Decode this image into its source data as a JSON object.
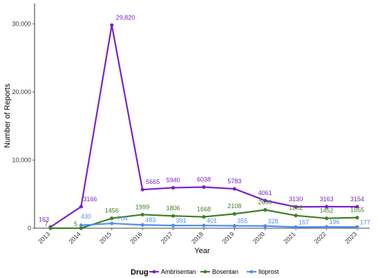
{
  "chart_data": {
    "type": "line",
    "title": "",
    "xlabel": "Year",
    "ylabel": "Number of Reports",
    "categories": [
      "2013",
      "2014",
      "2015",
      "2016",
      "2017",
      "2018",
      "2019",
      "2020",
      "2021",
      "2022",
      "2023"
    ],
    "ylim": [
      0,
      33000
    ],
    "yticks": [
      0,
      10000,
      20000,
      30000
    ],
    "ytick_labels": [
      "0",
      "10,000",
      "20,000",
      "30,000"
    ],
    "grid": false,
    "legend": {
      "title": "Drug",
      "position": "bottom"
    },
    "series": [
      {
        "name": "Ambrisentan",
        "color": "#7A1FC9",
        "values": [
          163,
          3166,
          29820,
          5665,
          5940,
          6038,
          5783,
          4061,
          3130,
          3163,
          3154
        ],
        "labels": [
          "163",
          "3166",
          "29,820",
          "5665",
          "5940",
          "6038",
          "5783",
          "4061",
          "3130",
          "3163",
          "3154"
        ]
      },
      {
        "name": "Bosentan",
        "color": "#3F7F1F",
        "values": [
          7,
          5,
          1456,
          1999,
          1806,
          1668,
          2108,
          2690,
          1862,
          1452,
          1555
        ],
        "labels": [
          "7",
          "5",
          "1456",
          "1999",
          "1806",
          "1668",
          "2108",
          "2690",
          "1862",
          "1452",
          "1555"
        ]
      },
      {
        "name": "Iloprost",
        "color": "#4D8EF0",
        "values": [
          null,
          430,
          704,
          483,
          391,
          401,
          355,
          328,
          167,
          196,
          177
        ],
        "labels": [
          "",
          "430",
          "704",
          "483",
          "391",
          "401",
          "355",
          "328",
          "167",
          "196",
          "177"
        ]
      }
    ]
  }
}
